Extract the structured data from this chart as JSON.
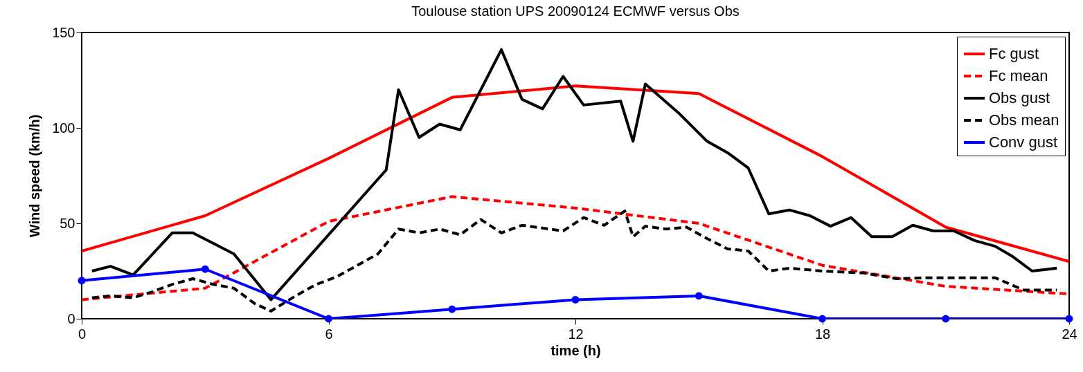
{
  "chart_data": {
    "type": "line",
    "title": "Toulouse station UPS 20090124   ECMWF versus Obs",
    "xlabel": "time (h)",
    "ylabel": "Wind speed (km/h)",
    "xlim": [
      0,
      24
    ],
    "xticks": [
      0,
      6,
      12,
      18,
      24
    ],
    "ylim": [
      0,
      150
    ],
    "yticks": [
      0,
      50,
      100,
      150
    ],
    "grid": false,
    "legend": "top right",
    "series": [
      {
        "name": "Fc gust",
        "color": "#ff0000",
        "line_style": "solid",
        "x": [
          0,
          3,
          6,
          9,
          12,
          15,
          18,
          21,
          24
        ],
        "values": [
          35.5,
          54,
          84,
          116,
          122,
          118,
          85,
          48,
          30
        ]
      },
      {
        "name": "Fc mean",
        "color": "#ff0000",
        "line_style": "dashed",
        "x": [
          0,
          3,
          6,
          9,
          12,
          15,
          18,
          21,
          24
        ],
        "values": [
          10,
          16,
          51,
          64,
          58,
          50,
          28,
          17,
          13
        ]
      },
      {
        "name": "Obs gust",
        "color": "#000000",
        "line_style": "solid",
        "x": [
          0.25,
          0.7,
          1.25,
          2.2,
          2.7,
          3.7,
          4.6,
          7.4,
          7.7,
          8.2,
          8.7,
          9.2,
          10.2,
          10.7,
          11.2,
          11.7,
          12.2,
          13.1,
          13.4,
          13.7,
          14.5,
          15.2,
          15.7,
          16.2,
          16.7,
          17.2,
          17.7,
          18.2,
          18.7,
          19.2,
          19.7,
          20.2,
          20.7,
          21.2,
          21.7,
          22.2,
          22.6,
          23.1,
          23.7
        ],
        "values": [
          25,
          27.5,
          23,
          45,
          45,
          34,
          10,
          78,
          120,
          95,
          102,
          99,
          141,
          115,
          110,
          127,
          112,
          114,
          93,
          123,
          108,
          93,
          87,
          79,
          55,
          57,
          54,
          48.5,
          53,
          43,
          43,
          49,
          46,
          46,
          41,
          38,
          33,
          25,
          26.5
        ]
      },
      {
        "name": "Obs mean",
        "color": "#000000",
        "line_style": "dashed",
        "x": [
          0.25,
          0.7,
          1.25,
          1.7,
          2.2,
          2.7,
          3.2,
          3.7,
          4.2,
          4.6,
          5.2,
          5.7,
          6.2,
          6.7,
          7.2,
          7.7,
          8.2,
          8.7,
          9.2,
          9.7,
          10.2,
          10.7,
          11.7,
          12.2,
          12.7,
          13.2,
          13.4,
          13.7,
          14.2,
          14.7,
          15.2,
          15.7,
          16.2,
          16.7,
          17.2,
          18,
          19,
          19.8,
          20.6,
          22.2,
          22.9,
          23.7
        ],
        "values": [
          11,
          12,
          11,
          14,
          18,
          21,
          18,
          16,
          8,
          4,
          12,
          18,
          22,
          28,
          34,
          47,
          45,
          47,
          44,
          52,
          45,
          49,
          46,
          53,
          49,
          56.5,
          43,
          48.5,
          47,
          48,
          42,
          36.6,
          35.5,
          25,
          26.5,
          25,
          24,
          21,
          21.5,
          21.5,
          15,
          15
        ]
      },
      {
        "name": "Conv gust",
        "color": "#0000ff",
        "line_style": "solid",
        "marker": "circle",
        "x": [
          0,
          3,
          6,
          9,
          12,
          15,
          18,
          21,
          24
        ],
        "values": [
          20,
          26,
          0,
          5,
          10,
          12,
          0,
          0,
          0
        ]
      }
    ]
  }
}
